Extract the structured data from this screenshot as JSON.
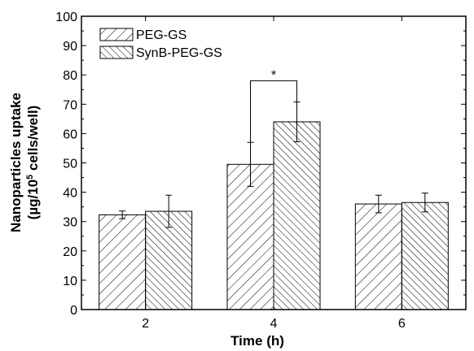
{
  "chart_data": {
    "type": "bar",
    "categories": [
      "2",
      "4",
      "6"
    ],
    "series": [
      {
        "name": "PEG-GS",
        "hatch": "forward",
        "values": [
          32.3,
          49.5,
          36.0
        ],
        "errors": [
          1.3,
          7.5,
          3.0
        ]
      },
      {
        "name": "SynB-PEG-GS",
        "hatch": "backward",
        "values": [
          33.5,
          64.0,
          36.5
        ],
        "errors": [
          5.5,
          6.8,
          3.2
        ]
      }
    ],
    "xlabel": "Time (h)",
    "ylabel_line1": "Nanoparticles uptake",
    "ylabel_line2_prefix": "(µg/10",
    "ylabel_line2_sup": "5",
    "ylabel_line2_suffix": " cells/well)",
    "ylim": [
      0,
      100
    ],
    "yticks": [
      "0",
      "10",
      "20",
      "30",
      "40",
      "50",
      "60",
      "70",
      "80",
      "90",
      "100"
    ],
    "significance": {
      "category": "4",
      "label": "*"
    },
    "legend_position": "top-left",
    "colors": {
      "stroke": "#000000",
      "background": "#ffffff"
    }
  }
}
